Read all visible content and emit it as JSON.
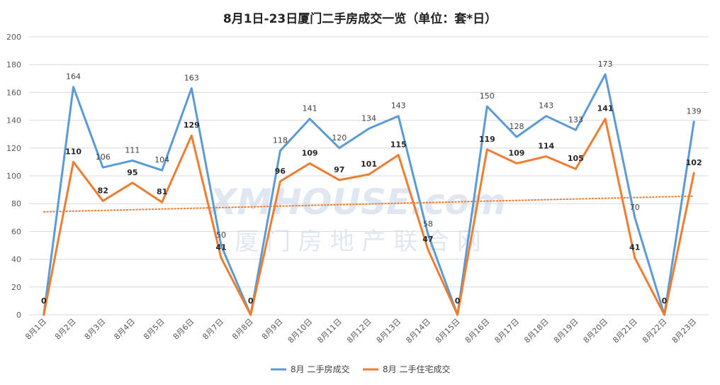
{
  "chart_data": {
    "type": "line",
    "title": "8月1日-23日厦门二手房成交一览（单位：套*日）",
    "categories": [
      "8月1日",
      "8月2日",
      "8月3日",
      "8月4日",
      "8月5日",
      "8月6日",
      "8月7日",
      "8月8日",
      "8月9日",
      "8月10日",
      "8月11日",
      "8月12日",
      "8月13日",
      "8月14日",
      "8月15日",
      "8月16日",
      "8月17日",
      "8月18日",
      "8月19日",
      "8月20日",
      "8月21日",
      "8月22日",
      "8月23日"
    ],
    "series": [
      {
        "name": "8月 二手房成交",
        "color": "#5b9bd5",
        "label_style": "normal",
        "values": [
          0,
          164,
          106,
          111,
          104,
          163,
          50,
          0,
          118,
          141,
          120,
          134,
          143,
          58,
          0,
          150,
          128,
          143,
          133,
          173,
          70,
          0,
          139
        ]
      },
      {
        "name": "8月 二手住宅成交",
        "color": "#ed7d31",
        "label_style": "bold",
        "values": [
          0,
          110,
          82,
          95,
          81,
          129,
          41,
          0,
          96,
          109,
          97,
          101,
          115,
          47,
          0,
          119,
          109,
          114,
          105,
          141,
          41,
          0,
          102
        ]
      }
    ],
    "trendline": {
      "series": "8月 二手住宅成交",
      "type": "linear",
      "style": "dotted",
      "color": "#ed7d31"
    },
    "ylim": [
      0,
      200
    ],
    "yticks": [
      0,
      20,
      40,
      60,
      80,
      100,
      120,
      140,
      160,
      180,
      200
    ],
    "grid": true,
    "legend_position": "bottom",
    "watermark": {
      "text_en": "XMHOUSE.com",
      "text_cn": "厦 门 房 地 产 联 合 网"
    }
  }
}
